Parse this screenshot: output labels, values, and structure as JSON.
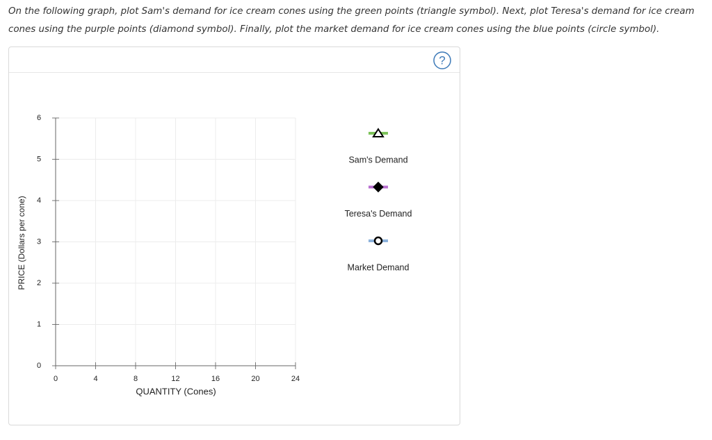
{
  "instructions": "On the following graph, plot Sam's demand for ice cream cones using the green points (triangle symbol). Next, plot Teresa's demand for ice cream cones using the purple points (diamond symbol). Finally, plot the market demand for ice cream cones using the blue points (circle symbol).",
  "help": "?",
  "chart_data": {
    "type": "scatter",
    "xlabel": "QUANTITY (Cones)",
    "ylabel": "PRICE (Dollars per cone)",
    "xlim": [
      0,
      24
    ],
    "xticks": [
      0,
      4,
      8,
      12,
      16,
      20,
      24
    ],
    "ylim": [
      0,
      6
    ],
    "yticks": [
      0,
      1,
      2,
      3,
      4,
      5,
      6
    ],
    "grid": true,
    "series": [
      {
        "name": "Sam's Demand",
        "color": "#7dc35a",
        "marker": "triangle"
      },
      {
        "name": "Teresa's Demand",
        "color": "#b86fd0",
        "marker": "diamond"
      },
      {
        "name": "Market Demand",
        "color": "#8db3dc",
        "marker": "circle"
      }
    ]
  }
}
